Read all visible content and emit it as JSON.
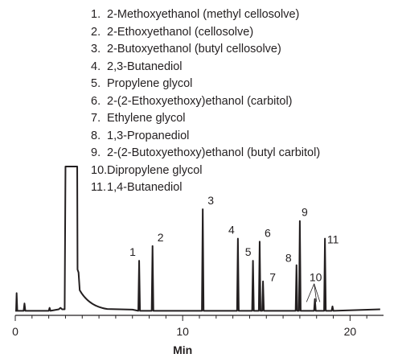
{
  "legend": [
    {
      "num": "1.",
      "name": "2-Methoxyethanol (methyl cellosolve)"
    },
    {
      "num": "2.",
      "name": "2-Ethoxyethanol (cellosolve)"
    },
    {
      "num": "3.",
      "name": "2-Butoxyethanol (butyl cellosolve)"
    },
    {
      "num": "4.",
      "name": "2,3-Butanediol"
    },
    {
      "num": "5.",
      "name": "Propylene glycol"
    },
    {
      "num": "6.",
      "name": "2-(2-Ethoxyethoxy)ethanol (carbitol)"
    },
    {
      "num": "7.",
      "name": "Ethylene glycol"
    },
    {
      "num": "8.",
      "name": "1,3-Propanediol"
    },
    {
      "num": "9.",
      "name": "2-(2-Butoxyethoxy)ethanol (butyl carbitol)"
    },
    {
      "num": "10.",
      "name": "Dipropylene glycol"
    },
    {
      "num": "11.",
      "name": "1,4-Butanediol"
    }
  ],
  "chart_data": {
    "type": "line",
    "title": "",
    "xlabel": "Min",
    "ylabel": "",
    "xlim": [
      0,
      22
    ],
    "ylim": [
      0,
      100
    ],
    "xticks": [
      0,
      10,
      20
    ],
    "grid": false,
    "baseline": 2,
    "solvent_peak": {
      "start": 3.0,
      "end": 3.7,
      "height": 100
    },
    "peaks": [
      {
        "label": "1",
        "x": 7.4,
        "y": 36
      },
      {
        "label": "2",
        "x": 8.2,
        "y": 46
      },
      {
        "label": "3",
        "x": 11.2,
        "y": 71
      },
      {
        "label": "4",
        "x": 13.3,
        "y": 51
      },
      {
        "label": "5",
        "x": 14.2,
        "y": 36
      },
      {
        "label": "6",
        "x": 14.6,
        "y": 49
      },
      {
        "label": "7",
        "x": 14.8,
        "y": 22
      },
      {
        "label": "8",
        "x": 16.8,
        "y": 33
      },
      {
        "label": "9",
        "x": 17.0,
        "y": 63
      },
      {
        "label": "10",
        "x": 17.9,
        "y": 10
      },
      {
        "label": "11",
        "x": 18.5,
        "y": 51
      }
    ],
    "peak_10_marks": [
      17.4,
      18.0,
      18.2
    ]
  }
}
